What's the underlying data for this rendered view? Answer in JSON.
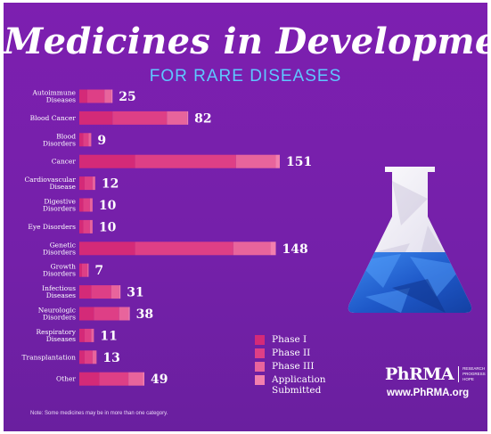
{
  "title": "Medicines in Development",
  "subtitle": "FOR RARE DISEASES",
  "note": "Note: Some medicines may be in more than one category.",
  "brand": {
    "logo": "PhRMA",
    "tagline_lines": [
      "RESEARCH",
      "PROGRESS",
      "HOPE"
    ],
    "url": "www.PhRMA.org"
  },
  "colors": {
    "background": "#7420a9",
    "subtitle": "#5ec8ff",
    "phase_1": "#d42a78",
    "phase_2": "#de3f86",
    "phase_3": "#e8649c",
    "application_submitted": "#f27fae"
  },
  "chart_data": {
    "type": "bar",
    "orientation": "horizontal",
    "stacked": true,
    "categories": [
      [
        "Autoimmune",
        "Diseases"
      ],
      [
        "Blood Cancer"
      ],
      [
        "Blood",
        "Disorders"
      ],
      [
        "Cancer"
      ],
      [
        "Cardiovascular",
        "Disease"
      ],
      [
        "Digestive",
        "Disorders"
      ],
      [
        "Eye Disorders"
      ],
      [
        "Genetic",
        "Disorders"
      ],
      [
        "Growth",
        "Disorders"
      ],
      [
        "Infectious",
        "Diseases"
      ],
      [
        "Neurologic",
        "Disorders"
      ],
      [
        "Respiratory",
        "Diseases"
      ],
      [
        "Transplantation"
      ],
      [
        "Other"
      ]
    ],
    "totals": [
      25,
      82,
      9,
      151,
      12,
      10,
      10,
      148,
      7,
      31,
      38,
      11,
      13,
      49
    ],
    "series": [
      {
        "name": "Phase I",
        "color": "#d42a78",
        "values": [
          6,
          25,
          3,
          42,
          4,
          3,
          3,
          42,
          2,
          9,
          11,
          4,
          4,
          15
        ]
      },
      {
        "name": "Phase II",
        "color": "#de3f86",
        "values": [
          13,
          41,
          4,
          76,
          6,
          5,
          5,
          74,
          4,
          15,
          19,
          5,
          6,
          22
        ]
      },
      {
        "name": "Phase III",
        "color": "#e8649c",
        "values": [
          5,
          15,
          2,
          30,
          2,
          2,
          2,
          28,
          1,
          6,
          7,
          2,
          3,
          11
        ]
      },
      {
        "name": "Application Submitted",
        "color": "#f27fae",
        "values": [
          1,
          1,
          0,
          3,
          0,
          0,
          0,
          4,
          0,
          1,
          1,
          0,
          0,
          1
        ]
      }
    ],
    "legend_position": "bottom-right",
    "grid": false
  }
}
